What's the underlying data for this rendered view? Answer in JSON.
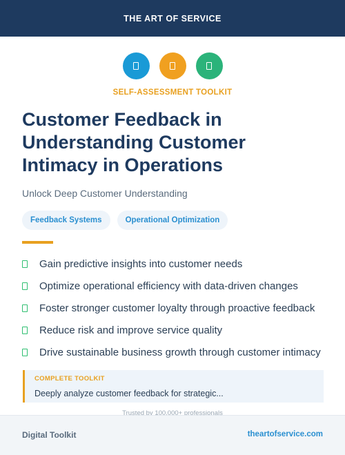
{
  "header": {
    "brand": "THE ART OF SERVICE"
  },
  "icons": [
    {
      "name": "document-icon",
      "color": "#1a9ad6"
    },
    {
      "name": "document-icon",
      "color": "#f0a020"
    },
    {
      "name": "document-icon",
      "color": "#2bb37a"
    }
  ],
  "eyebrow": "SELF-ASSESSMENT TOOLKIT",
  "title": "Customer Feedback in Understanding Customer Intimacy in Operations",
  "subtitle": "Unlock Deep Customer Understanding",
  "tags": [
    "Feedback Systems",
    "Operational Optimization"
  ],
  "benefits": [
    "Gain predictive insights into customer needs",
    "Optimize operational efficiency with data-driven changes",
    "Foster stronger customer loyalty through proactive feedback",
    "Reduce risk and improve service quality",
    "Drive sustainable business growth through customer intimacy"
  ],
  "callout": {
    "label": "COMPLETE TOOLKIT",
    "text": "Deeply analyze customer feedback for strategic..."
  },
  "trust": "Trusted by 100,000+ professionals",
  "footer": {
    "left": "Digital Toolkit",
    "right": "theartofservice.com"
  },
  "colors": {
    "navy": "#1e3a5f",
    "accent": "#e8a020",
    "link": "#2a8fd0",
    "check": "#2fbf71"
  }
}
